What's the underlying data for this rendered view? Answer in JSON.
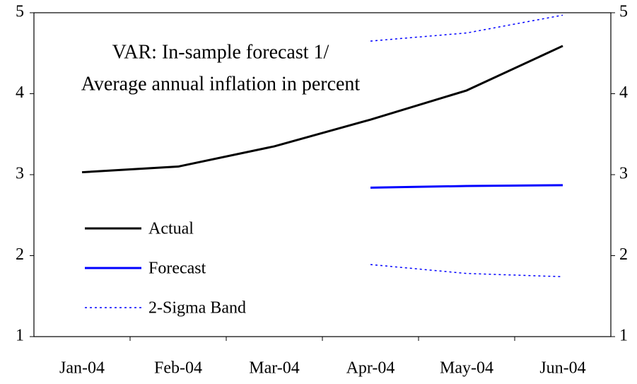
{
  "chart_data": {
    "type": "line",
    "title": "VAR: In-sample forecast 1/",
    "subtitle": "Average annual inflation in percent",
    "categories": [
      "Jan-04",
      "Feb-04",
      "Mar-04",
      "Apr-04",
      "May-04",
      "Jun-04"
    ],
    "series": [
      {
        "name": "Actual",
        "color": "#000000",
        "style": "solid",
        "values": [
          3.03,
          3.1,
          3.35,
          3.68,
          4.04,
          4.59
        ]
      },
      {
        "name": "Forecast",
        "color": "#0000ff",
        "style": "solid",
        "values": [
          null,
          null,
          null,
          2.84,
          2.86,
          2.87
        ]
      },
      {
        "name": "2-Sigma Band",
        "color": "#0000ff",
        "style": "dotted",
        "values": [
          null,
          null,
          null,
          4.65,
          4.75,
          4.97
        ],
        "lower_values": [
          null,
          null,
          null,
          1.89,
          1.78,
          1.74
        ]
      }
    ],
    "ylim": [
      1,
      5
    ],
    "yticks": [
      1,
      2,
      3,
      4,
      5
    ],
    "y2lim": [
      1,
      5
    ],
    "y2ticks": [
      1,
      2,
      3,
      4,
      5
    ]
  }
}
